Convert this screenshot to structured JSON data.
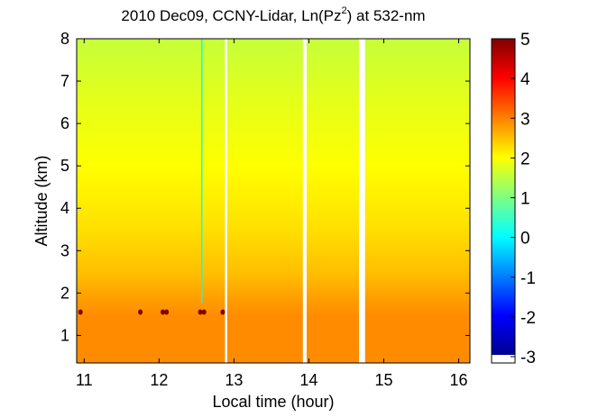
{
  "chart_data": {
    "type": "heatmap",
    "title_main": "2010 Dec09, CCNY-Lidar, Ln(Pz",
    "title_sup": "2",
    "title_end": ") at 532-nm",
    "xlabel": "Local time (hour)",
    "ylabel": "Altitude (km)",
    "xlim": [
      10.9,
      16.15
    ],
    "ylim": [
      0.35,
      8.0
    ],
    "xticks": [
      "11",
      "12",
      "13",
      "14",
      "15",
      "16"
    ],
    "yticks": [
      "1",
      "2",
      "3",
      "4",
      "5",
      "6",
      "7",
      "8"
    ],
    "colorbar": {
      "range": [
        -3,
        5
      ],
      "ticks": [
        "-3",
        "-2",
        "-1",
        "0",
        "1",
        "2",
        "3",
        "4",
        "5"
      ]
    },
    "profile": [
      {
        "altitude": 0.35,
        "value": 2.9
      },
      {
        "altitude": 1.5,
        "value": 2.9
      },
      {
        "altitude": 1.9,
        "value": 2.75
      },
      {
        "altitude": 2.5,
        "value": 2.5
      },
      {
        "altitude": 3.5,
        "value": 2.25
      },
      {
        "altitude": 5.0,
        "value": 2.0
      },
      {
        "altitude": 6.5,
        "value": 1.8
      },
      {
        "altitude": 8.0,
        "value": 1.55
      }
    ],
    "data_gaps": [
      [
        12.88,
        12.91
      ],
      [
        13.92,
        13.97
      ],
      [
        14.67,
        14.75
      ]
    ],
    "features": [
      {
        "type": "vertical-streak",
        "time": 12.57,
        "altitude_range": [
          1.75,
          8.0
        ],
        "value": 0.0
      },
      {
        "type": "hot-spots",
        "altitude": 1.55,
        "value": 5.0,
        "times": [
          10.95,
          11.75,
          12.05,
          12.1,
          12.55,
          12.6,
          12.85
        ]
      }
    ]
  }
}
